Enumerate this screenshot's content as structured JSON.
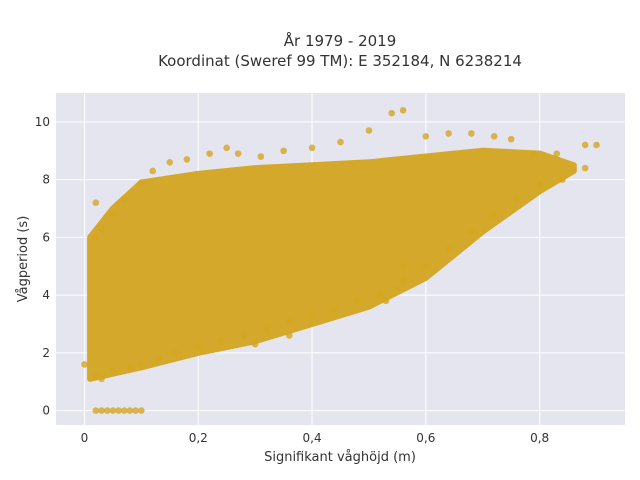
{
  "chart_data": {
    "type": "scatter",
    "title_lines": [
      "År 1979 - 2019",
      "Koordinat (Sweref 99 TM): E 352184, N 6238214"
    ],
    "xlabel": "Signifikant våghöjd (m)",
    "ylabel": "Vågperiod (s)",
    "xlim": [
      -0.05,
      0.95
    ],
    "ylim": [
      -0.5,
      11
    ],
    "xticks": [
      0,
      0.2,
      0.4,
      0.6,
      0.8
    ],
    "xtick_labels": [
      "0",
      "0,2",
      "0,4",
      "0,6",
      "0,8"
    ],
    "yticks": [
      0,
      2,
      4,
      6,
      8,
      10
    ],
    "ytick_labels": [
      "0",
      "2",
      "4",
      "6",
      "8",
      "10"
    ],
    "grid": true,
    "legend": "none",
    "background_color": "#e5e5ef",
    "point_color": "#d4a520",
    "series": [
      {
        "points": [
          [
            0.0,
            1.6
          ],
          [
            0.02,
            1.2
          ],
          [
            0.02,
            7.2
          ],
          [
            0.02,
            6.0
          ],
          [
            0.03,
            1.1
          ],
          [
            0.05,
            1.4
          ],
          [
            0.08,
            1.5
          ],
          [
            0.1,
            1.6
          ],
          [
            0.13,
            1.8
          ],
          [
            0.16,
            2.0
          ],
          [
            0.2,
            2.2
          ],
          [
            0.24,
            2.4
          ],
          [
            0.28,
            2.6
          ],
          [
            0.32,
            2.8
          ],
          [
            0.36,
            3.1
          ],
          [
            0.4,
            3.3
          ],
          [
            0.44,
            3.5
          ],
          [
            0.48,
            3.8
          ],
          [
            0.52,
            4.0
          ],
          [
            0.56,
            4.5
          ],
          [
            0.6,
            5.0
          ],
          [
            0.64,
            5.6
          ],
          [
            0.68,
            6.2
          ],
          [
            0.72,
            6.8
          ],
          [
            0.76,
            7.3
          ],
          [
            0.8,
            7.8
          ],
          [
            0.84,
            8.0
          ],
          [
            0.88,
            8.4
          ],
          [
            0.9,
            9.2
          ],
          [
            0.88,
            9.2
          ],
          [
            0.83,
            8.9
          ],
          [
            0.79,
            8.9
          ],
          [
            0.75,
            9.4
          ],
          [
            0.72,
            9.5
          ],
          [
            0.68,
            9.6
          ],
          [
            0.64,
            9.6
          ],
          [
            0.6,
            9.5
          ],
          [
            0.56,
            10.4
          ],
          [
            0.54,
            10.3
          ],
          [
            0.5,
            9.7
          ],
          [
            0.45,
            9.3
          ],
          [
            0.4,
            9.1
          ],
          [
            0.35,
            9.0
          ],
          [
            0.31,
            8.8
          ],
          [
            0.27,
            8.9
          ],
          [
            0.25,
            9.1
          ],
          [
            0.22,
            8.9
          ],
          [
            0.18,
            8.7
          ],
          [
            0.15,
            8.6
          ],
          [
            0.12,
            8.3
          ],
          [
            0.1,
            7.9
          ],
          [
            0.07,
            7.3
          ],
          [
            0.05,
            6.8
          ],
          [
            0.03,
            6.3
          ],
          [
            0.53,
            3.8
          ],
          [
            0.55,
            4.2
          ],
          [
            0.56,
            5.0
          ],
          [
            0.36,
            2.6
          ],
          [
            0.3,
            2.3
          ]
        ]
      }
    ],
    "series_note_min_period": [
      [
        0.02,
        0.0
      ],
      [
        0.03,
        0.0
      ],
      [
        0.04,
        0.0
      ],
      [
        0.05,
        0.0
      ],
      [
        0.06,
        0.0
      ],
      [
        0.07,
        0.0
      ],
      [
        0.08,
        0.0
      ],
      [
        0.09,
        0.0
      ],
      [
        0.1,
        0.0
      ]
    ],
    "dense_region": {
      "x_from": 0.01,
      "lower_boundary": [
        [
          0.01,
          1.1
        ],
        [
          0.1,
          1.5
        ],
        [
          0.2,
          2.0
        ],
        [
          0.3,
          2.4
        ],
        [
          0.4,
          3.0
        ],
        [
          0.5,
          3.6
        ],
        [
          0.6,
          4.6
        ],
        [
          0.7,
          6.2
        ],
        [
          0.8,
          7.6
        ],
        [
          0.86,
          8.3
        ]
      ],
      "upper_boundary": [
        [
          0.01,
          6.0
        ],
        [
          0.05,
          7.0
        ],
        [
          0.1,
          7.9
        ],
        [
          0.2,
          8.2
        ],
        [
          0.3,
          8.4
        ],
        [
          0.4,
          8.5
        ],
        [
          0.5,
          8.6
        ],
        [
          0.6,
          8.8
        ],
        [
          0.7,
          9.0
        ],
        [
          0.8,
          8.9
        ],
        [
          0.86,
          8.5
        ]
      ]
    }
  }
}
